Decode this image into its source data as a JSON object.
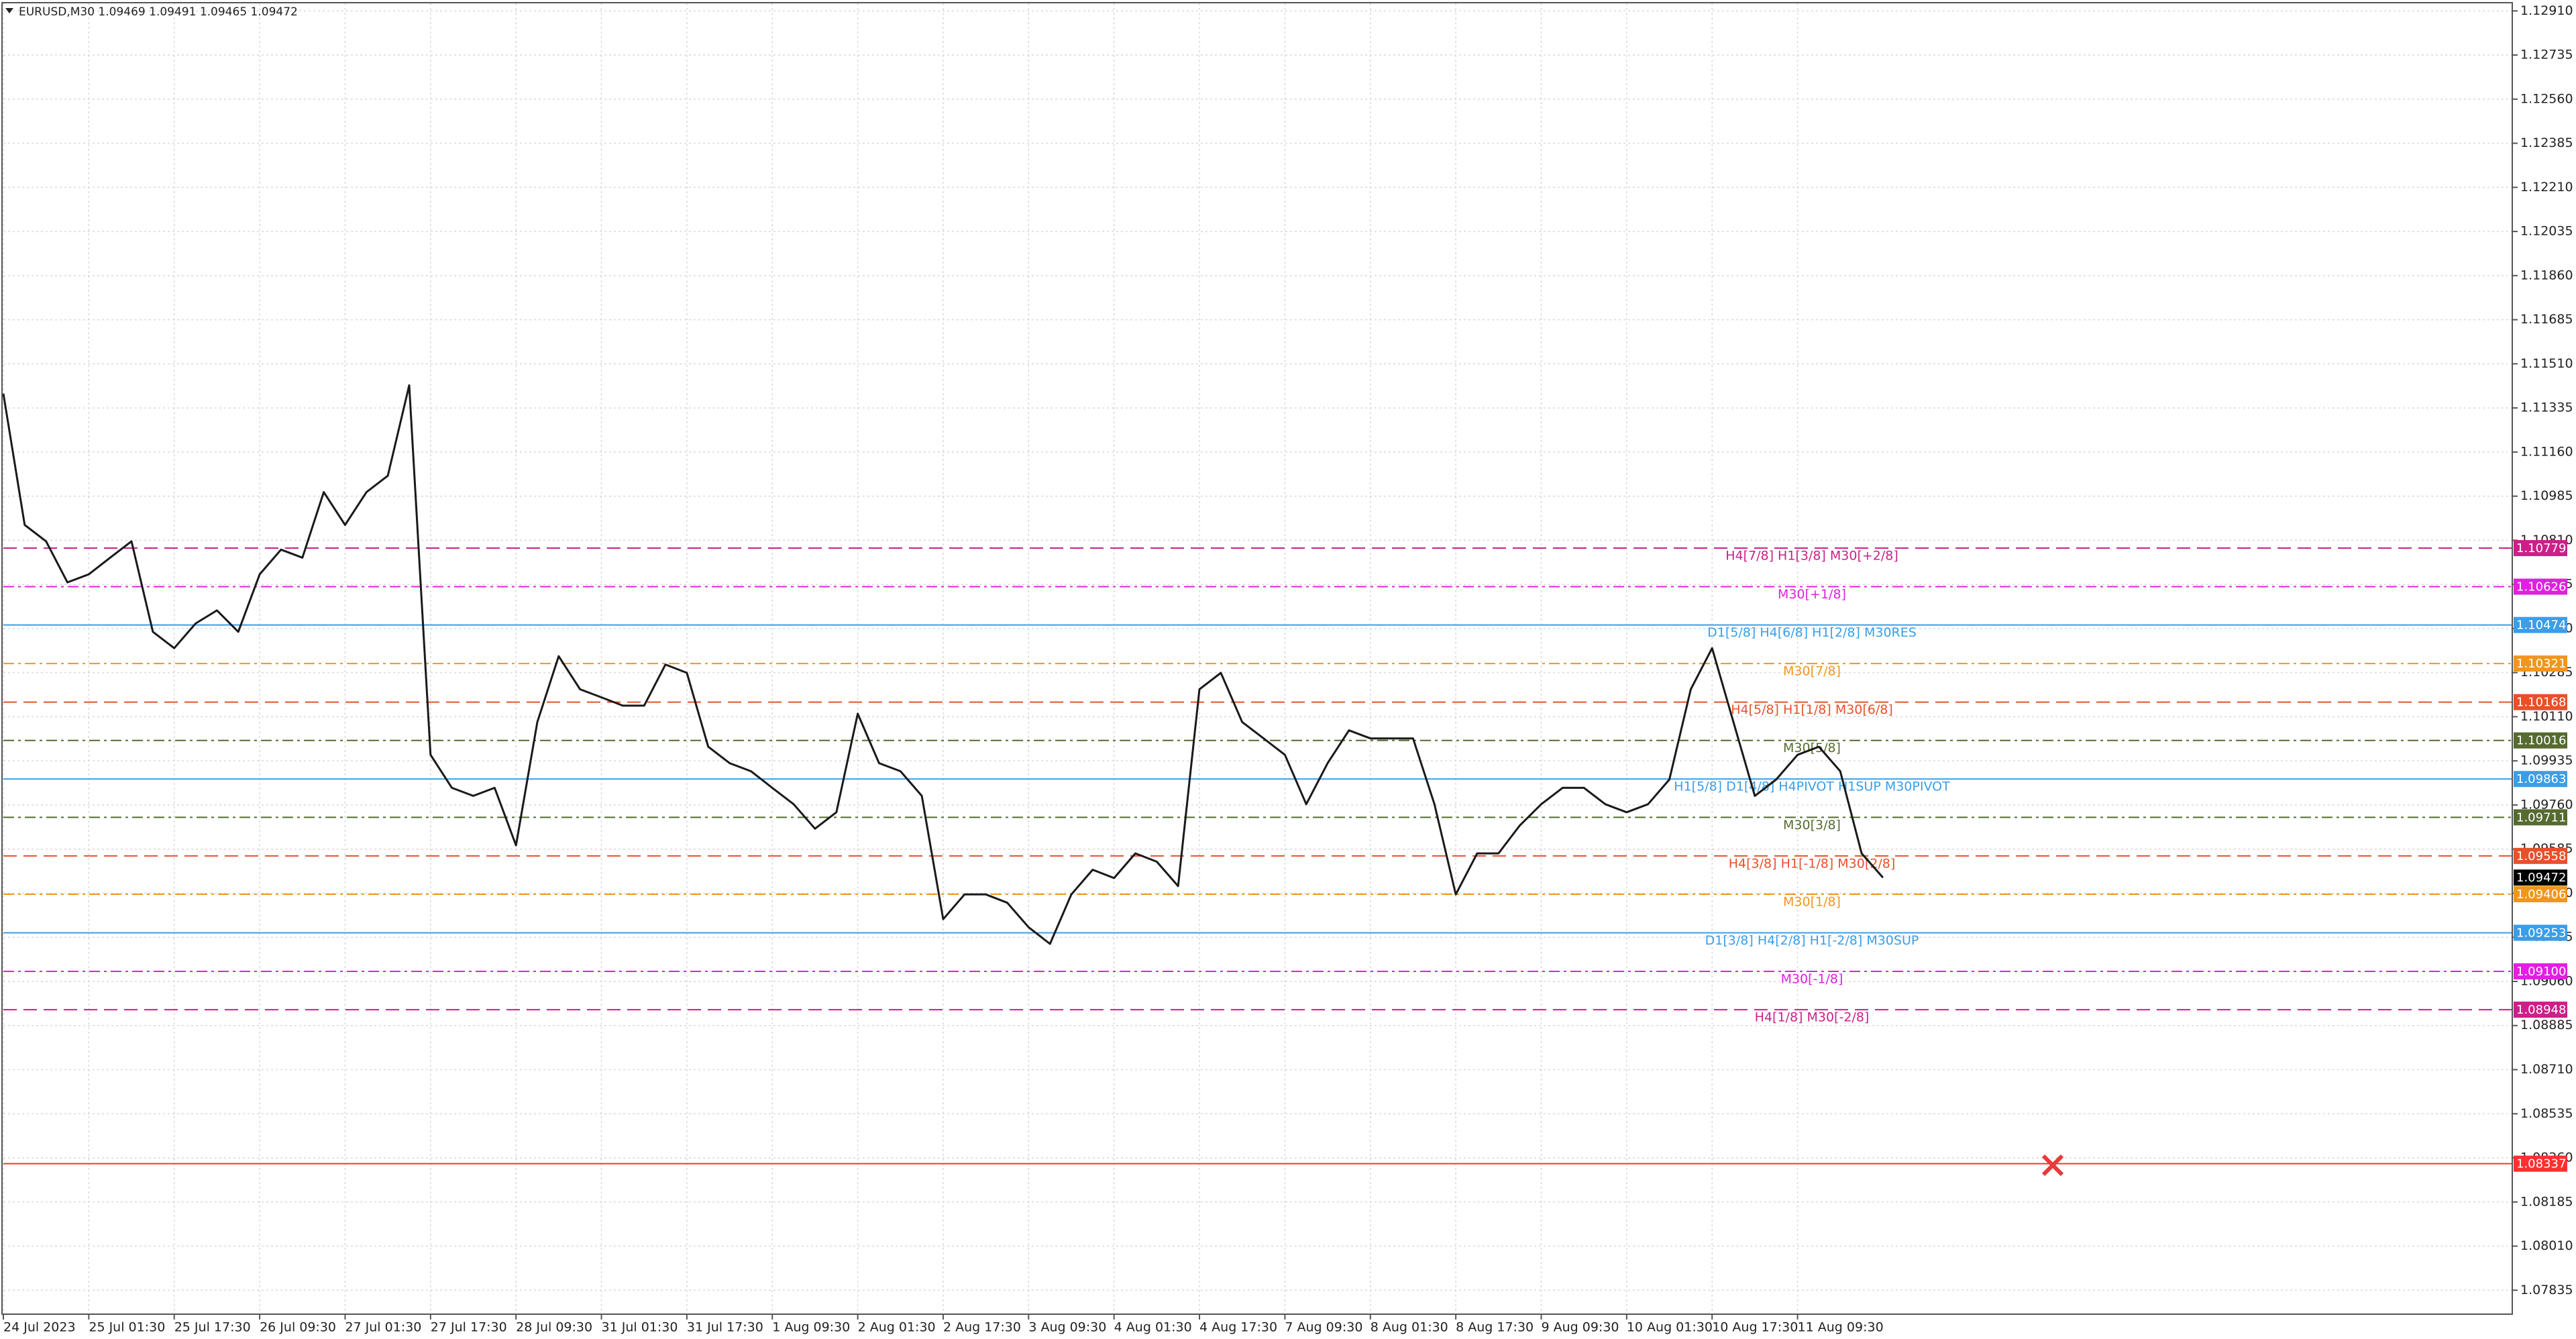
{
  "chart_data": {
    "type": "line",
    "title": "EURUSD,M30  1.09469 1.09491 1.09465 1.09472",
    "color": "#1a1a1a",
    "grid": true,
    "x": [
      "24 Jul 2023",
      null,
      null,
      null,
      "25 Jul 01:30",
      null,
      null,
      null,
      "25 Jul 17:30",
      null,
      null,
      null,
      "26 Jul 09:30",
      null,
      null,
      null,
      "27 Jul 01:30",
      null,
      null,
      null,
      "27 Jul 17:30",
      null,
      null,
      null,
      "28 Jul 09:30",
      null,
      null,
      null,
      "31 Jul 01:30",
      null,
      null,
      null,
      "31 Jul 17:30",
      null,
      null,
      null,
      "1 Aug 09:30",
      null,
      null,
      null,
      "2 Aug 01:30",
      null,
      null,
      null,
      "2 Aug 17:30",
      null,
      null,
      null,
      "3 Aug 09:30",
      null,
      null,
      null,
      "4 Aug 01:30",
      null,
      null,
      null,
      "4 Aug 17:30",
      null,
      null,
      null,
      "7 Aug 09:30",
      null,
      null,
      null,
      "8 Aug 01:30",
      null,
      null,
      null,
      "8 Aug 17:30",
      null,
      null,
      null,
      "9 Aug 09:30",
      null,
      null,
      null,
      "10 Aug 01:30",
      null,
      null,
      null,
      "10 Aug 17:30",
      null,
      null,
      null,
      "11 Aug 09:30",
      null,
      null,
      null,
      null
    ],
    "values": [
      1.11392,
      1.10871,
      1.10806,
      1.10643,
      1.10675,
      1.10741,
      1.10806,
      1.10447,
      1.10382,
      1.1048,
      1.10532,
      1.10447,
      1.10675,
      1.10773,
      1.10741,
      1.11001,
      1.10871,
      1.11001,
      1.11066,
      1.11425,
      1.09959,
      1.09828,
      1.09796,
      1.09828,
      1.096,
      1.10089,
      1.1035,
      1.10219,
      1.10187,
      1.10154,
      1.10154,
      1.10317,
      1.10284,
      1.09991,
      1.09926,
      1.09894,
      1.09828,
      1.09763,
      1.09666,
      1.09731,
      1.10122,
      1.09926,
      1.09894,
      1.09796,
      1.09307,
      1.09405,
      1.09405,
      1.09372,
      1.09275,
      1.09209,
      1.09405,
      1.09503,
      1.0947,
      1.09568,
      1.09535,
      1.09438,
      1.10219,
      1.10284,
      1.10089,
      1.10024,
      1.09959,
      1.09763,
      1.09926,
      1.10056,
      1.10024,
      1.10024,
      1.10024,
      1.09763,
      1.09405,
      1.09568,
      1.09568,
      1.09679,
      1.09763,
      1.09828,
      1.09828,
      1.09763,
      1.09731,
      1.09763,
      1.09861,
      1.10219,
      1.10382,
      1.10089,
      1.09796,
      1.09861,
      1.09959,
      1.09991,
      1.09894,
      1.09568,
      1.09472
    ],
    "ylim": [
      1.0774,
      1.1294
    ],
    "yticks": [
      1.07835,
      {
        "value": 1.0801,
        "label": "1.08010"
      },
      1.08185,
      {
        "value": 1.0836,
        "label": "1.08360"
      },
      1.08535,
      {
        "value": 1.0871,
        "label": "1.08710"
      },
      1.08885,
      {
        "value": 1.0906,
        "label": "1.09060"
      },
      1.09235,
      {
        "value": 1.0941,
        "label": "1.09410"
      },
      1.09585,
      {
        "value": 1.0976,
        "label": "1.09760"
      },
      1.09935,
      {
        "value": 1.1011,
        "label": "1.10110"
      },
      1.10285,
      {
        "value": 1.1046,
        "label": "1.10460"
      },
      1.10635,
      {
        "value": 1.1081,
        "label": "1.10810"
      },
      1.10985,
      {
        "value": 1.1116,
        "label": "1.11160"
      },
      1.11335,
      {
        "value": 1.1151,
        "label": "1.11510"
      },
      1.11685,
      {
        "value": 1.1186,
        "label": "1.11860"
      },
      1.12035,
      {
        "value": 1.1221,
        "label": "1.12210"
      },
      1.12385,
      {
        "value": 1.1256,
        "label": "1.12560"
      },
      1.12735,
      {
        "value": 1.1291,
        "label": "1.12910"
      }
    ],
    "levels": [
      {
        "name": "H4[7/8] H1[3/8] M30[+2/8]",
        "value": 1.10779,
        "color": "#cc1f8a",
        "dash": "dash"
      },
      {
        "name": "M30[+1/8]",
        "value": 1.10626,
        "color": "#e020e0",
        "dash": "dashdot"
      },
      {
        "name": "D1[5/8] H4[6/8] H1[2/8] M30RES",
        "value": 1.10474,
        "color": "#3a9ee8",
        "dash": "solid"
      },
      {
        "name": "M30[7/8]",
        "value": 1.10321,
        "color": "#f0961e",
        "dash": "dashdot"
      },
      {
        "name": "H4[5/8] H1[1/8] M30[6/8]",
        "value": 1.10168,
        "color": "#e8502a",
        "dash": "dash"
      },
      {
        "name": "M30[5/8]",
        "value": 1.10016,
        "color": "#556b2f",
        "dash": "dashdot"
      },
      {
        "name": "H1[5/8] D1[4/8] H4PIVOT H1SUP M30PIVOT",
        "value": 1.09863,
        "color": "#3a9ee8",
        "dash": "solid"
      },
      {
        "name": "M30[3/8]",
        "value": 1.09711,
        "color": "#556b2f",
        "dash": "dashdot"
      },
      {
        "name": "H4[3/8] H1[-1/8] M30[2/8]",
        "value": 1.09558,
        "color": "#e8502a",
        "dash": "dash"
      },
      {
        "name": "M30[1/8]",
        "value": 1.09406,
        "color": "#f0961e",
        "dash": "dashdot"
      },
      {
        "name": "D1[3/8] H4[2/8] H1[-2/8] M30SUP",
        "value": 1.09253,
        "color": "#3a9ee8",
        "dash": "solid"
      },
      {
        "name": "M30[-1/8]",
        "value": 1.091,
        "value_label": "1.09100",
        "color": "#e020e0",
        "dash": "dashdot"
      },
      {
        "name": "H4[1/8] M30[-2/8]",
        "value": 1.08948,
        "color": "#cc1f8a",
        "dash": "dash"
      }
    ],
    "alert_line": {
      "value": 1.08337,
      "color": "#ff3030"
    },
    "last_price": {
      "value": 1.09472,
      "color": "#000000"
    }
  }
}
